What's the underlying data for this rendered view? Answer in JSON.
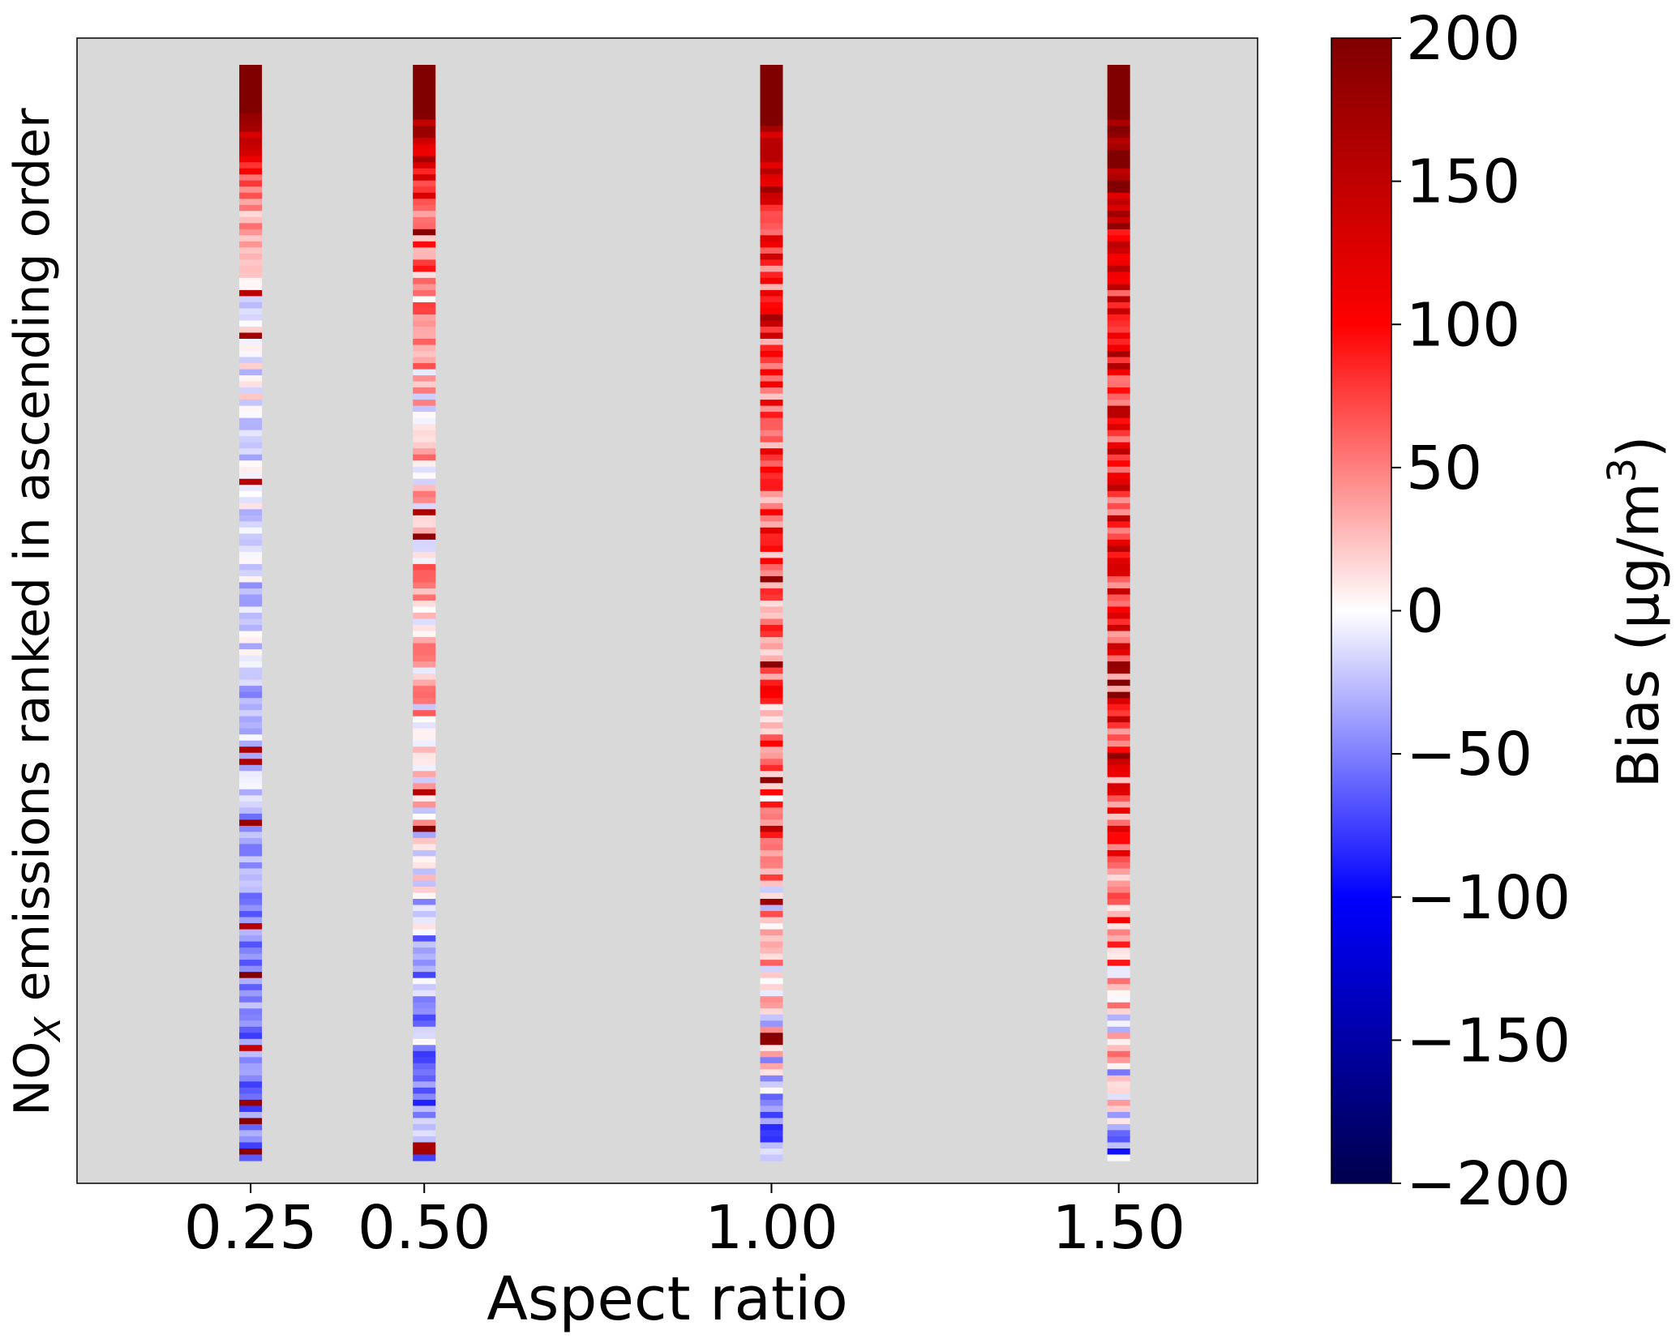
{
  "chart_data": {
    "type": "heatmap",
    "xlabel": "Aspect ratio",
    "ylabel_main": "NO",
    "ylabel_sub": "X",
    "ylabel_rest": " emissions ranked in ascending order",
    "x_ticks": [
      "0.25",
      "0.50",
      "1.00",
      "1.50"
    ],
    "x_values": [
      0.25,
      0.5,
      1.0,
      1.5
    ],
    "xlim": [
      0.0,
      1.7
    ],
    "rows": 180,
    "background_color": "#d9d9d9",
    "colorbar": {
      "label": "Bias (µg/m",
      "label_sup": "3",
      "label_close": ")",
      "range": [
        -200,
        200
      ],
      "ticks": [
        "200",
        "150",
        "100",
        "50",
        "0",
        "−50",
        "−100",
        "−150",
        "−200"
      ],
      "tick_values": [
        200,
        150,
        100,
        50,
        0,
        -50,
        -100,
        -150,
        -200
      ],
      "colormap": "seismic"
    },
    "series": [
      {
        "name": "0.25",
        "profile": [
          [
            0,
            200
          ],
          [
            0.05,
            170
          ],
          [
            0.12,
            40
          ],
          [
            0.22,
            0
          ],
          [
            0.45,
            -15
          ],
          [
            0.65,
            -30
          ],
          [
            0.8,
            -45
          ],
          [
            1,
            -60
          ]
        ],
        "spread": 28
      },
      {
        "name": "0.50",
        "profile": [
          [
            0,
            200
          ],
          [
            0.05,
            180
          ],
          [
            0.15,
            60
          ],
          [
            0.3,
            20
          ],
          [
            0.5,
            30
          ],
          [
            0.65,
            15
          ],
          [
            0.8,
            -30
          ],
          [
            1,
            -50
          ]
        ],
        "spread": 45
      },
      {
        "name": "1.00",
        "profile": [
          [
            0,
            200
          ],
          [
            0.07,
            160
          ],
          [
            0.2,
            80
          ],
          [
            0.45,
            70
          ],
          [
            0.65,
            50
          ],
          [
            0.85,
            10
          ],
          [
            0.95,
            -20
          ],
          [
            1,
            -40
          ]
        ],
        "spread": 55
      },
      {
        "name": "1.50",
        "profile": [
          [
            0,
            200
          ],
          [
            0.07,
            190
          ],
          [
            0.2,
            110
          ],
          [
            0.45,
            100
          ],
          [
            0.65,
            80
          ],
          [
            0.85,
            40
          ],
          [
            0.95,
            -10
          ],
          [
            1,
            -40
          ]
        ],
        "spread": 60
      }
    ]
  }
}
